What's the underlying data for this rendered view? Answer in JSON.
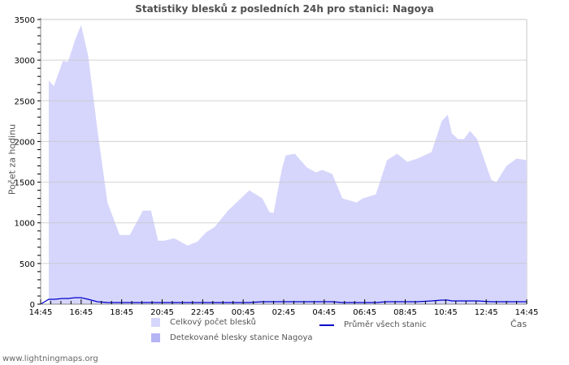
{
  "header": {
    "title": "Statistiky blesků z posledních 24h pro stanici: Nagoya"
  },
  "footer": {
    "site": "www.lightningmaps.org"
  },
  "legend": {
    "total": "Celkový počet blesků",
    "detected": "Detekované blesky stanice Nagoya",
    "average": "Průměr všech stanic"
  },
  "axes": {
    "ylabel": "Počet za hodinu",
    "xlabel": "Čas"
  },
  "colors": {
    "total_fill": "#d6d6fc",
    "detected_fill": "#b4b4f5",
    "average_line": "#0000cc",
    "grid": "#c8c8c8"
  },
  "chart_data": {
    "type": "area",
    "title": "Statistiky blesků z posledních 24h pro stanici: Nagoya",
    "xlabel": "Čas",
    "ylabel": "Počet za hodinu",
    "ylim": [
      0,
      3500
    ],
    "yticks": [
      0,
      500,
      1000,
      1500,
      2000,
      2500,
      3000,
      3500
    ],
    "xticks": [
      "14:45",
      "16:45",
      "18:45",
      "20:45",
      "22:45",
      "00:45",
      "02:45",
      "04:45",
      "06:45",
      "08:45",
      "10:45",
      "12:45",
      "14:45"
    ],
    "grid": true,
    "legend_position": "bottom",
    "x_hours_from_start": [
      0.4,
      0.65,
      1.1,
      1.35,
      1.7,
      2.0,
      2.35,
      2.8,
      3.3,
      3.9,
      4.4,
      5.05,
      5.45,
      5.8,
      6.1,
      6.6,
      7.25,
      7.75,
      8.15,
      8.6,
      9.25,
      10.3,
      10.95,
      11.3,
      11.5,
      11.9,
      12.1,
      12.55,
      13.15,
      13.6,
      13.9,
      14.4,
      14.9,
      15.6,
      15.9,
      16.55,
      17.1,
      17.6,
      18.1,
      18.6,
      19.3,
      19.8,
      20.1,
      20.3,
      20.6,
      20.9,
      21.2,
      21.55,
      22.25,
      22.5,
      23.0,
      23.5,
      24.0
    ],
    "series": [
      {
        "name": "Celkový počet blesků",
        "values": [
          2750,
          2680,
          2990,
          2980,
          3250,
          3430,
          3050,
          2150,
          1250,
          850,
          850,
          1150,
          1150,
          780,
          780,
          810,
          720,
          770,
          880,
          950,
          1150,
          1400,
          1300,
          1130,
          1120,
          1650,
          1830,
          1850,
          1680,
          1620,
          1650,
          1600,
          1300,
          1250,
          1300,
          1350,
          1770,
          1850,
          1750,
          1790,
          1870,
          2250,
          2330,
          2100,
          2030,
          2030,
          2130,
          2030,
          1530,
          1500,
          1700,
          1790,
          1770
        ]
      },
      {
        "name": "Detekované blesky stanice Nagoya",
        "values": [
          0,
          0,
          0,
          0,
          0,
          0,
          0,
          0,
          0,
          0,
          0,
          0,
          0,
          0,
          0,
          0,
          0,
          0,
          0,
          0,
          0,
          0,
          0,
          0,
          0,
          0,
          0,
          0,
          0,
          0,
          0,
          0,
          0,
          0,
          0,
          0,
          0,
          0,
          0,
          0,
          0,
          0,
          0,
          0,
          0,
          0,
          0,
          0,
          0,
          0,
          0,
          0,
          0
        ]
      },
      {
        "name": "Průměr všech stanic",
        "values": [
          60,
          60,
          70,
          70,
          80,
          80,
          60,
          30,
          20,
          20,
          20,
          20,
          20,
          20,
          20,
          20,
          20,
          20,
          20,
          20,
          20,
          20,
          30,
          30,
          30,
          30,
          30,
          30,
          30,
          30,
          30,
          30,
          20,
          20,
          20,
          20,
          30,
          30,
          30,
          30,
          40,
          50,
          50,
          40,
          40,
          40,
          40,
          40,
          30,
          30,
          30,
          30,
          30
        ]
      }
    ]
  }
}
